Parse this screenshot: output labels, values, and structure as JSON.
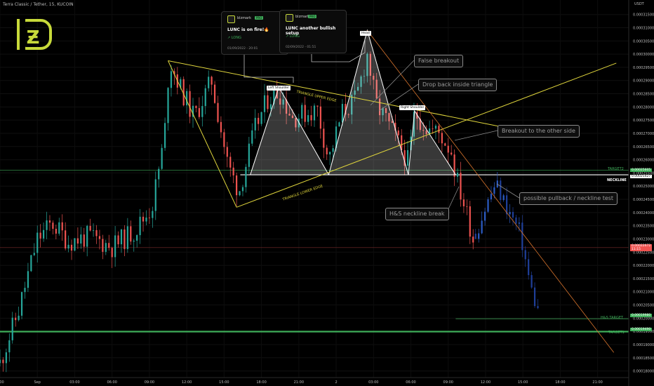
{
  "header": {
    "symbol_line": "Terra Classic / Tether, 15, KUCOIN",
    "currency": "USDT"
  },
  "colors": {
    "up": "#26a69a",
    "down": "#ef5350",
    "triangle": "#e0d63c",
    "neckline": "#ffffff",
    "target": "#3fae5a",
    "trend": "#d8742c",
    "projection": "#2c5cc5",
    "logo": "#c7d93a"
  },
  "logo": {
    "glyph": "Ƶ"
  },
  "ideas": [
    {
      "author": "blzmark",
      "badge": "PRO",
      "title": "LUNC is on fire!🔥",
      "direction": "LONG",
      "timestamp": "01/09/2022 - 20:01"
    },
    {
      "author": "blzmark",
      "badge": "PRO",
      "title": "LUNC another bullish setup",
      "direction": "LONG",
      "timestamp": "02/09/2022 - 01:51"
    }
  ],
  "callouts": [
    {
      "name": "false-breakout",
      "text": "False breakout"
    },
    {
      "name": "drop-back",
      "text": "Drop back inside triangle"
    },
    {
      "name": "breakout-other-side",
      "text": "Breakout to the other side"
    },
    {
      "name": "pullback",
      "text": "possible pullback / neckline test"
    },
    {
      "name": "neckline-break",
      "text": "H&S neckline break"
    }
  ],
  "pattern_labels": {
    "head": "Head",
    "left_shoulder": "Left Shoulder",
    "right_shoulder": "Right Shoulder",
    "upper_edge": "TRIANGLE UPPER EDGE",
    "lower_edge": "TRIANGLE LOWER EDGE"
  },
  "chart_data": {
    "type": "candlestick",
    "title": "Terra Classic / Tether, 15, KUCOIN",
    "ylim": [
      0.0001775,
      0.0003205
    ],
    "y_ticks": [
      "0.00031500",
      "0.00031000",
      "0.00030500",
      "0.00030000",
      "0.00029500",
      "0.00029000",
      "0.00028500",
      "0.00028000",
      "0.00027500",
      "0.00027000",
      "0.00026500",
      "0.00026000",
      "0.00025500",
      "0.00025000",
      "0.00024500",
      "0.00024000",
      "0.00023500",
      "0.00023000",
      "0.00022500",
      "0.00022000",
      "0.00021500",
      "0.00021000",
      "0.00020500",
      "0.00020000",
      "0.00019500",
      "0.00019000",
      "0.00018500",
      "0.00018000"
    ],
    "x_ticks": [
      "0:00",
      "Sep",
      "03:00",
      "06:00",
      "09:00",
      "12:00",
      "15:00",
      "18:00",
      "21:00",
      "2",
      "03:00",
      "06:00",
      "09:00",
      "12:00",
      "15:00",
      "18:00",
      "21:00"
    ],
    "x_ticks_hours": [
      -2,
      1,
      4,
      7,
      10,
      13,
      16,
      19,
      22,
      25,
      28,
      31,
      34,
      37,
      40,
      43,
      46
    ],
    "price_labels": [
      {
        "label": "",
        "value": "0.00025605",
        "price": 0.00025605,
        "color": "#3fae5a"
      },
      {
        "label": "",
        "value": "0.00025427",
        "price": 0.00025427,
        "color": "#ffffff"
      },
      {
        "label": "",
        "value": "0.00022672",
        "price": 0.00022672,
        "color": "#ef5350",
        "sub": "11:15"
      },
      {
        "label": "",
        "value": "0.00019980",
        "price": 0.0001998,
        "color": "#3fae5a"
      },
      {
        "label": "",
        "value": "0.00019490",
        "price": 0.0001949,
        "color": "#3fae5a"
      }
    ],
    "levels": [
      {
        "name": "TARGET2",
        "price": 0.00025605,
        "color": "#3fae5a"
      },
      {
        "name": "NECKLINE",
        "price": 0.00025427,
        "color": "#ffffff"
      },
      {
        "name": "H&S TARGET",
        "price": 0.0001998,
        "color": "#3fae5a"
      },
      {
        "name": "TARGET1",
        "price": 0.0001949,
        "color": "#3fae5a"
      }
    ],
    "current_price_line": 0.00022672,
    "anchors": {
      "upper_start": [
        11.5,
        0.0002975
      ],
      "upper_end": [
        38.8,
        0.000272
      ],
      "lower_start": [
        17.0,
        0.000242
      ],
      "lower_end": [
        47.5,
        0.0002966
      ],
      "neck_left": [
        17.3,
        0.0002543
      ],
      "neck_right": [
        34.6,
        0.0002543
      ],
      "ls_peak": [
        20.4,
        0.0002875
      ],
      "ls_left": [
        18.1,
        0.0002543
      ],
      "ls_right": [
        24.4,
        0.0002543
      ],
      "head_peak": [
        27.5,
        0.000309
      ],
      "head_left": [
        24.4,
        0.0002543
      ],
      "head_right": [
        30.8,
        0.0002543
      ],
      "rs_peak": [
        31.3,
        0.0002785
      ],
      "rs_right": [
        34.6,
        0.0002543
      ],
      "trend_start": [
        27.5,
        0.000309
      ],
      "trend_end": [
        47.3,
        0.000187
      ],
      "hs_target_from": 34.6,
      "proj_start": 35.0,
      "proj_end": 41.3
    },
    "series": {
      "seed": 11,
      "waypoints": [
        [
          -2,
          0.000183
        ],
        [
          -0.5,
          0.000203
        ],
        [
          1,
          0.00023
        ],
        [
          2.2,
          0.000236
        ],
        [
          3.5,
          0.000229
        ],
        [
          5.2,
          0.000231
        ],
        [
          7,
          0.000227
        ],
        [
          8.8,
          0.000233
        ],
        [
          10.2,
          0.000242
        ],
        [
          11.2,
          0.000268
        ],
        [
          11.6,
          0.000298
        ],
        [
          12.5,
          0.000287
        ],
        [
          13.6,
          0.000276
        ],
        [
          15,
          0.00029
        ],
        [
          16.3,
          0.000258
        ],
        [
          17.2,
          0.000248
        ],
        [
          18.5,
          0.000272
        ],
        [
          19.5,
          0.000283
        ],
        [
          20.4,
          0.000286
        ],
        [
          21.5,
          0.000276
        ],
        [
          23.5,
          0.000279
        ],
        [
          24.4,
          0.00026
        ],
        [
          25.5,
          0.000278
        ],
        [
          26.6,
          0.000283
        ],
        [
          27.5,
          0.0003
        ],
        [
          28.2,
          0.000281
        ],
        [
          29,
          0.000275
        ],
        [
          29.8,
          0.000268
        ],
        [
          30.8,
          0.000259
        ],
        [
          31.3,
          0.000278
        ],
        [
          32.3,
          0.000272
        ],
        [
          33.3,
          0.00027
        ],
        [
          34.3,
          0.000263
        ],
        [
          34.6,
          0.000254
        ],
        [
          35.6,
          0.000238
        ],
        [
          36,
          0.00023
        ]
      ],
      "projection": [
        [
          36.2,
          0.000232
        ],
        [
          37,
          0.000242
        ],
        [
          37.8,
          0.000251
        ],
        [
          38.8,
          0.000241
        ],
        [
          39.8,
          0.000232
        ],
        [
          40.6,
          0.000212
        ],
        [
          41.3,
          0.000201
        ]
      ]
    }
  }
}
